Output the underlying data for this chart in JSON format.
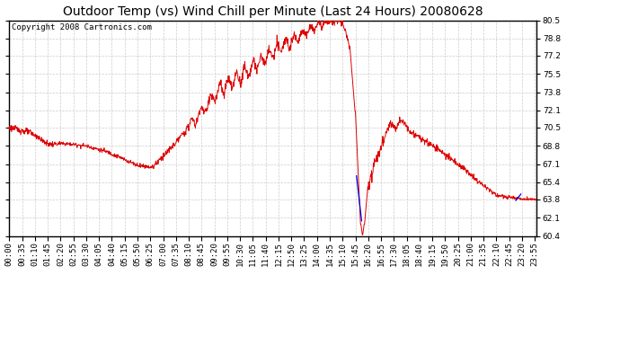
{
  "title": "Outdoor Temp (vs) Wind Chill per Minute (Last 24 Hours) 20080628",
  "copyright": "Copyright 2008 Cartronics.com",
  "ylim": [
    60.4,
    80.5
  ],
  "yticks": [
    80.5,
    78.8,
    77.2,
    75.5,
    73.8,
    72.1,
    70.5,
    68.8,
    67.1,
    65.4,
    63.8,
    62.1,
    60.4
  ],
  "line_color_red": "#dd0000",
  "line_color_blue": "#0000dd",
  "bg_color": "#ffffff",
  "plot_bg_color": "#ffffff",
  "grid_color": "#cccccc",
  "title_fontsize": 10,
  "copyright_fontsize": 6.5,
  "tick_fontsize": 6.5
}
